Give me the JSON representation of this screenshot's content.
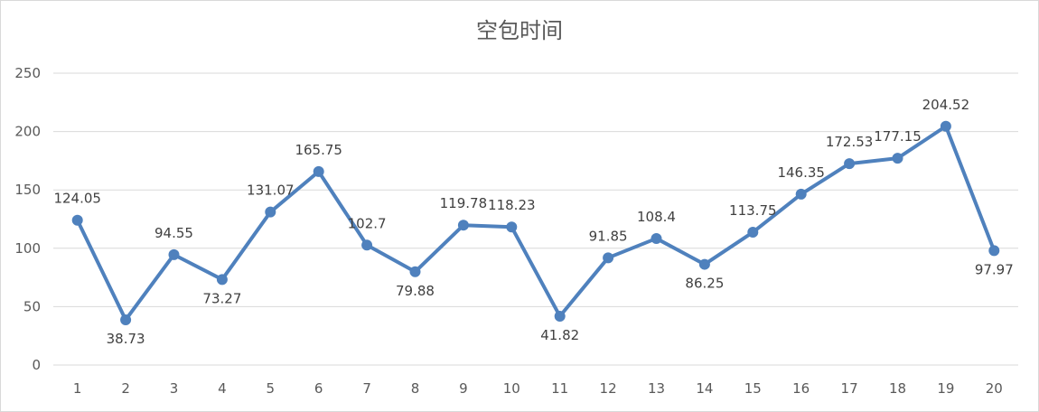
{
  "chart_data": {
    "type": "line",
    "title": "空包时间",
    "xlabel": "",
    "ylabel": "",
    "categories": [
      "1",
      "2",
      "3",
      "4",
      "5",
      "6",
      "7",
      "8",
      "9",
      "10",
      "11",
      "12",
      "13",
      "14",
      "15",
      "16",
      "17",
      "18",
      "19",
      "20"
    ],
    "values": [
      124.05,
      38.73,
      94.55,
      73.27,
      131.07,
      165.75,
      102.7,
      79.88,
      119.78,
      118.23,
      41.82,
      91.85,
      108.4,
      86.25,
      113.75,
      146.35,
      172.53,
      177.15,
      204.52,
      97.97
    ],
    "value_labels": [
      "124.05",
      "38.73",
      "94.55",
      "73.27",
      "131.07",
      "165.75",
      "102.7",
      "79.88",
      "119.78",
      "118.23",
      "41.82",
      "91.85",
      "108.4",
      "86.25",
      "113.75",
      "146.35",
      "172.53",
      "177.15",
      "204.52",
      "97.97"
    ],
    "label_positions": [
      "above",
      "below",
      "above",
      "below",
      "above",
      "above",
      "above",
      "below",
      "above",
      "above",
      "below",
      "above",
      "above",
      "below",
      "above",
      "above",
      "above",
      "above",
      "above",
      "below"
    ],
    "ylim": [
      0,
      250
    ],
    "yticks": [
      0,
      50,
      100,
      150,
      200,
      250
    ],
    "grid": true,
    "legend": "none",
    "colors": {
      "series": "#4f81bd",
      "grid": "#d9d9d9",
      "axis_text": "#595959",
      "label_text": "#404040"
    }
  }
}
